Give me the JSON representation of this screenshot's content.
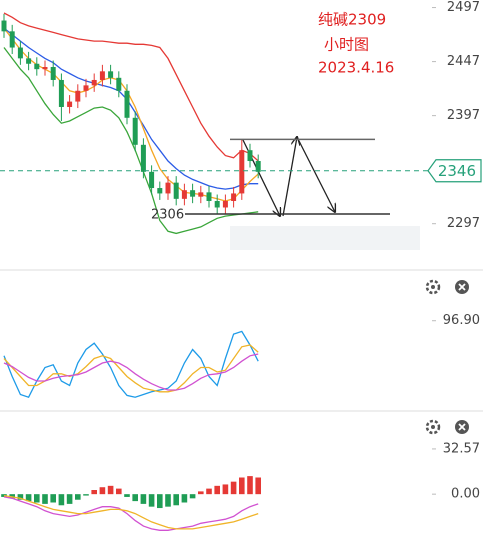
{
  "chart_data": [
    {
      "type": "candlestick",
      "annotations": [
        "纯碱2309",
        "小时图",
        "2023.4.16",
        "2306"
      ],
      "open": [
        2485,
        2475,
        2460,
        2450,
        2445,
        2440,
        2442,
        2430,
        2405,
        2410,
        2420,
        2425,
        2430,
        2438,
        2432,
        2420,
        2395,
        2370,
        2345,
        2330,
        2325,
        2335,
        2320,
        2328,
        2322,
        2326,
        2318,
        2312,
        2318,
        2325,
        2365,
        2355
      ],
      "high": [
        2491,
        2481,
        2466,
        2456,
        2451,
        2448,
        2448,
        2436,
        2416,
        2426,
        2431,
        2436,
        2444,
        2444,
        2438,
        2426,
        2401,
        2376,
        2351,
        2336,
        2341,
        2341,
        2334,
        2334,
        2332,
        2332,
        2324,
        2324,
        2331,
        2375,
        2371,
        2361
      ],
      "low": [
        2469,
        2454,
        2444,
        2439,
        2434,
        2434,
        2424,
        2392,
        2399,
        2404,
        2414,
        2419,
        2424,
        2426,
        2414,
        2389,
        2364,
        2339,
        2324,
        2319,
        2319,
        2314,
        2314,
        2316,
        2316,
        2312,
        2306,
        2306,
        2312,
        2319,
        2349,
        2339
      ],
      "close": [
        2475,
        2460,
        2450,
        2445,
        2440,
        2442,
        2430,
        2405,
        2410,
        2420,
        2425,
        2430,
        2438,
        2432,
        2420,
        2395,
        2370,
        2345,
        2330,
        2325,
        2335,
        2320,
        2328,
        2322,
        2326,
        2318,
        2312,
        2318,
        2325,
        2365,
        2355,
        2345
      ],
      "up_color": "#e53935",
      "down_color": "#1f9d55",
      "series": [
        {
          "color": "#e53935",
          "values": [
            2492,
            2488,
            2483,
            2480,
            2478,
            2476,
            2474,
            2472,
            2470,
            2468,
            2467,
            2466,
            2466,
            2465,
            2464,
            2464,
            2463,
            2463,
            2462,
            2460,
            2450,
            2435,
            2420,
            2405,
            2390,
            2378,
            2368,
            2360,
            2358,
            2365,
            2362,
            2355
          ]
        },
        {
          "color": "#2c5ce6",
          "values": [
            2478,
            2472,
            2466,
            2460,
            2455,
            2450,
            2446,
            2440,
            2436,
            2432,
            2429,
            2427,
            2425,
            2423,
            2420,
            2412,
            2400,
            2388,
            2375,
            2365,
            2355,
            2348,
            2342,
            2338,
            2335,
            2332,
            2330,
            2329,
            2330,
            2333,
            2334,
            2334
          ]
        },
        {
          "color": "#3aa63a",
          "values": [
            2460,
            2450,
            2440,
            2432,
            2420,
            2408,
            2398,
            2390,
            2392,
            2396,
            2400,
            2404,
            2405,
            2402,
            2395,
            2382,
            2365,
            2345,
            2325,
            2300,
            2290,
            2288,
            2290,
            2292,
            2294,
            2298,
            2302,
            2304,
            2305,
            2306,
            2307,
            2308
          ]
        },
        {
          "color": "#f5a623",
          "values": [
            2478,
            2468,
            2458,
            2450,
            2444,
            2440,
            2436,
            2428,
            2420,
            2418,
            2420,
            2424,
            2430,
            2432,
            2430,
            2420,
            2405,
            2385,
            2365,
            2348,
            2338,
            2332,
            2326,
            2325,
            2324,
            2322,
            2320,
            2318,
            2320,
            2328,
            2336,
            2343
          ]
        }
      ],
      "hlines": [
        2375,
        2306
      ],
      "last": 2346,
      "last_color": "#26a17a",
      "ylim": [
        2256,
        2504
      ],
      "yticks": [
        2497,
        2447,
        2397,
        2297
      ]
    },
    {
      "type": "line",
      "series": [
        {
          "color": "#1e9be8",
          "values": [
            58,
            35,
            15,
            12,
            30,
            45,
            48,
            30,
            25,
            50,
            65,
            72,
            60,
            45,
            25,
            14,
            12,
            15,
            18,
            20,
            22,
            30,
            50,
            65,
            55,
            35,
            25,
            55,
            82,
            85,
            70,
            52
          ]
        },
        {
          "color": "#f0b429",
          "values": [
            55,
            45,
            35,
            25,
            25,
            30,
            38,
            38,
            35,
            38,
            46,
            55,
            58,
            55,
            45,
            35,
            28,
            22,
            20,
            18,
            18,
            20,
            28,
            38,
            45,
            45,
            40,
            42,
            55,
            68,
            70,
            62
          ]
        },
        {
          "color": "#d152d1",
          "values": [
            50,
            46,
            40,
            34,
            30,
            30,
            33,
            35,
            36,
            37,
            40,
            45,
            50,
            52,
            50,
            45,
            38,
            32,
            27,
            23,
            20,
            20,
            22,
            27,
            33,
            37,
            38,
            40,
            45,
            52,
            58,
            60
          ]
        }
      ],
      "ylim": [
        0,
        151
      ],
      "yticks": [
        {
          "value": 96.9,
          "label": "96.90"
        }
      ]
    },
    {
      "type": "bar",
      "values": [
        -2,
        -3,
        -4,
        -5,
        -6,
        -7,
        -6,
        -8,
        -7,
        -4,
        -1,
        3,
        5,
        6,
        4,
        -2,
        -5,
        -7,
        -9,
        -10,
        -9,
        -8,
        -6,
        -3,
        2,
        4,
        6,
        7,
        9,
        12,
        13,
        12
      ],
      "up_color": "#e53935",
      "down_color": "#1f9d55",
      "series": [
        {
          "color": "#d152d1",
          "values": [
            -2,
            -3,
            -5,
            -7,
            -9,
            -12,
            -14,
            -15,
            -16,
            -15,
            -13,
            -11,
            -9,
            -9,
            -10,
            -14,
            -19,
            -23,
            -25,
            -26,
            -26,
            -25,
            -24,
            -23,
            -21,
            -20,
            -19,
            -18,
            -16,
            -12,
            -9,
            -7
          ]
        },
        {
          "color": "#f0b429",
          "values": [
            -1,
            -2,
            -3,
            -5,
            -7,
            -9,
            -11,
            -12,
            -13,
            -14,
            -14,
            -13,
            -12,
            -11,
            -11,
            -12,
            -14,
            -17,
            -20,
            -22,
            -24,
            -25,
            -25,
            -25,
            -24,
            -23,
            -22,
            -21,
            -20,
            -18,
            -16,
            -14
          ]
        }
      ],
      "ylim": [
        -33,
        57
      ],
      "yticks": [
        {
          "value": 32.57,
          "label": "32.57"
        },
        {
          "value": 0,
          "label": "0.00"
        }
      ]
    }
  ]
}
